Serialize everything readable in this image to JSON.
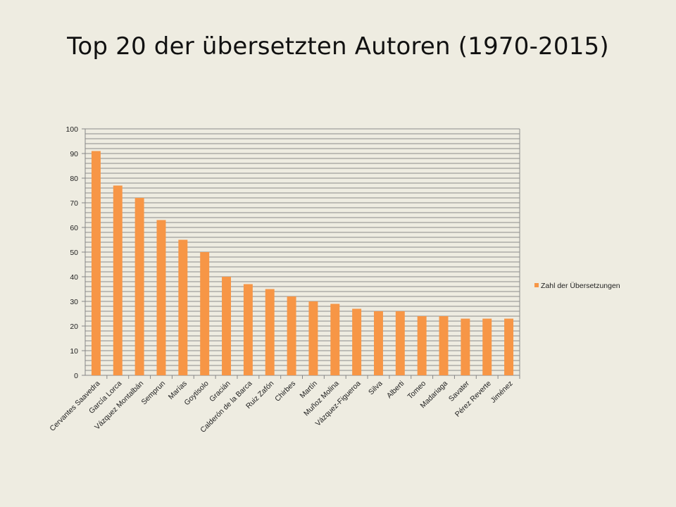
{
  "slide": {
    "title": "Top 20 der übersetzten Autoren (1970-2015)"
  },
  "colors": {
    "background": "#eeece1",
    "bar": "#f79646",
    "grid": "#8c8c8c",
    "axis": "#868686"
  },
  "chart_data": {
    "type": "bar",
    "title": "Top 20 der übersetzten Autoren (1970-2015)",
    "xlabel": "",
    "ylabel": "",
    "ylim": [
      0,
      100
    ],
    "yticks": [
      0,
      10,
      20,
      30,
      40,
      50,
      60,
      70,
      80,
      90,
      100
    ],
    "grid": true,
    "legend_position": "right",
    "categories": [
      "Cervantes Saavedra",
      "García Lorca",
      "Vázquez Montalbán",
      "Semprun",
      "Marías",
      "Goytisolo",
      "Gracián",
      "Calderón de la Barca",
      "Ruiz Zafón",
      "Chirbes",
      "Martín",
      "Muñoz Molina",
      "Vázquez-Figueroa",
      "Silva",
      "Alberti",
      "Tomeo",
      "Madariaga",
      "Savater",
      "Pérez Reverte",
      "Jiménez"
    ],
    "series": [
      {
        "name": "Zahl der Übersetzungen",
        "values": [
          91,
          77,
          72,
          63,
          55,
          50,
          40,
          37,
          35,
          32,
          30,
          29,
          27,
          26,
          26,
          24,
          24,
          23,
          23,
          23
        ]
      }
    ]
  }
}
